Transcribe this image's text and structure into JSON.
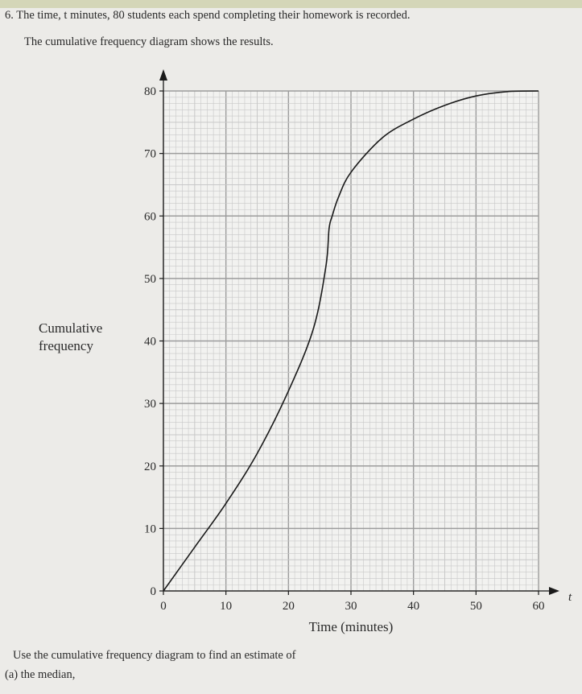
{
  "question": {
    "line1": "6. The time, t minutes, 80 students each spend completing their homework is recorded.",
    "line2": "The cumulative frequency diagram shows the results.",
    "line3": "Use the cumulative frequency diagram to find an estimate of",
    "line4": "(a) the median,"
  },
  "chart_data": {
    "type": "line",
    "title": "",
    "xlabel": "Time (minutes)",
    "xvar": "t",
    "ylabel_line1": "Cumulative",
    "ylabel_line2": "frequency",
    "xlim": [
      0,
      60
    ],
    "ylim": [
      0,
      80
    ],
    "xticks": [
      0,
      10,
      20,
      30,
      40,
      50,
      60
    ],
    "yticks": [
      0,
      10,
      20,
      30,
      40,
      50,
      60,
      70,
      80
    ],
    "grid": true,
    "series": [
      {
        "x": [
          0,
          5,
          10,
          15,
          20,
          24,
          26,
          26.5,
          27,
          28,
          30,
          35,
          40,
          45,
          50,
          55,
          60
        ],
        "y": [
          0,
          7,
          14,
          22,
          32,
          42,
          52,
          58,
          60,
          63,
          67,
          72.5,
          75.5,
          77.7,
          79.2,
          79.9,
          80
        ]
      }
    ],
    "colors": {
      "curve": "#1a1a1a",
      "grid_major": "#9c9c9c",
      "grid_minor": "#c8c8c8",
      "grid_bg": "#f2f2f0"
    }
  }
}
